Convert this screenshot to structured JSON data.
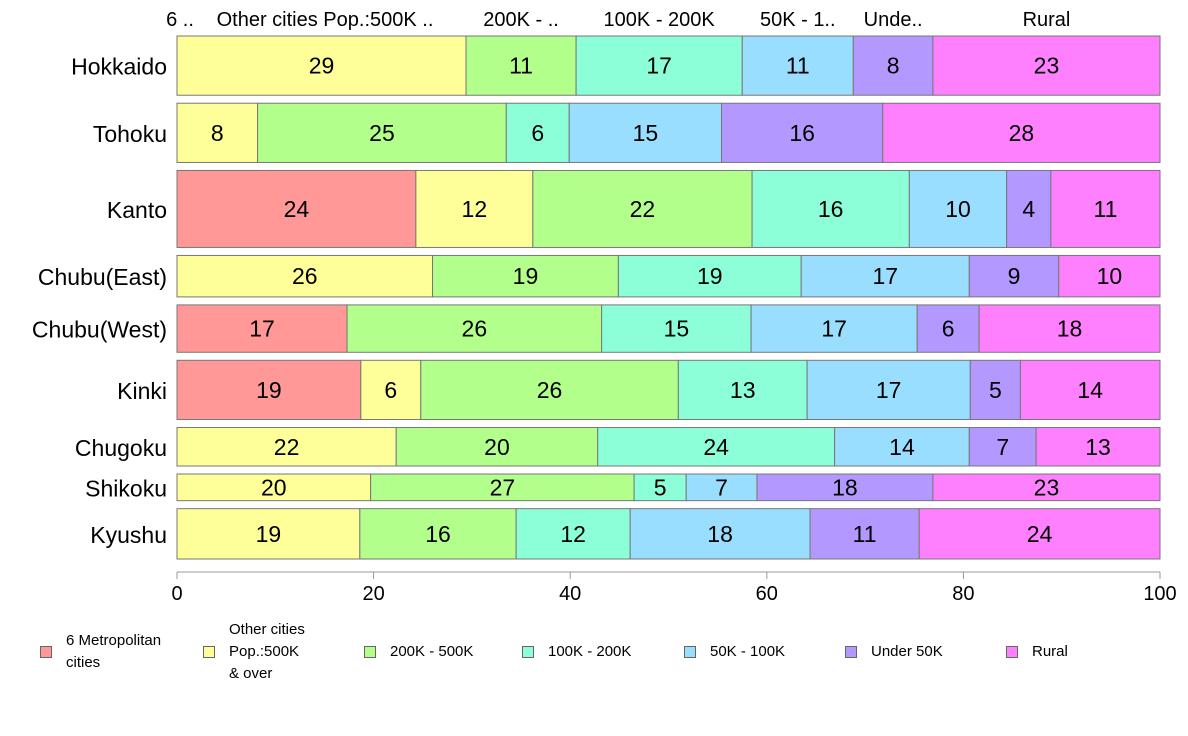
{
  "chart_data": {
    "type": "bar",
    "orientation": "horizontal",
    "stacked": true,
    "categories": [
      "Hokkaido",
      "Tohoku",
      "Kanto",
      "Chubu(East)",
      "Chubu(West)",
      "Kinki",
      "Chugoku",
      "Shikoku",
      "Kyushu"
    ],
    "series": [
      {
        "name": "6 Metropolitan\ncities",
        "header": "6 ..",
        "color": "#ff9896",
        "values": [
          0,
          0,
          24.3,
          0,
          17.3,
          18.7,
          0,
          0,
          0
        ]
      },
      {
        "name": "Other cities\nPop.:500K\n& over",
        "header": "Other cities Pop.:500K ..",
        "color": "#ffff99",
        "values": [
          29.4,
          8.2,
          11.9,
          26,
          0,
          6.1,
          22.3,
          19.7,
          18.6
        ]
      },
      {
        "name": "200K - 500K",
        "header": "200K - ..",
        "color": "#b3ff8c",
        "values": [
          11.2,
          25.3,
          22.3,
          18.9,
          25.9,
          26.2,
          20.5,
          26.8,
          15.9
        ]
      },
      {
        "name": "100K - 200K",
        "header": "100K - 200K",
        "color": "#8cffd9",
        "values": [
          16.9,
          6.4,
          16,
          18.6,
          15.2,
          13.1,
          24.1,
          5.3,
          11.6
        ]
      },
      {
        "name": "50K - 100K",
        "header": "50K - 1..",
        "color": "#99ddff",
        "values": [
          11.3,
          15.5,
          9.9,
          17.1,
          16.9,
          16.6,
          13.7,
          7.2,
          18.3
        ]
      },
      {
        "name": "Under 50K",
        "header": "Unde..",
        "color": "#b399ff",
        "values": [
          8.1,
          16.4,
          4.5,
          9.1,
          6.3,
          5.1,
          6.8,
          17.9,
          11.1
        ]
      },
      {
        "name": "Rural",
        "header": "Rural",
        "color": "#ff80ff",
        "values": [
          23.1,
          28.2,
          11.1,
          10.3,
          18.4,
          14.2,
          12.6,
          23.1,
          24.5
        ]
      }
    ],
    "value_labels": [
      [
        null,
        "29",
        "11",
        "17",
        "11",
        "8",
        "23"
      ],
      [
        null,
        "8",
        "25",
        "6",
        "15",
        "16",
        "28"
      ],
      [
        "24",
        "12",
        "22",
        "16",
        "10",
        "4",
        "11"
      ],
      [
        null,
        "26",
        "19",
        "19",
        "17",
        "9",
        "10"
      ],
      [
        "17",
        null,
        "26",
        "15",
        "17",
        "6",
        "18"
      ],
      [
        "19",
        "6",
        "26",
        "13",
        "17",
        "5",
        "14"
      ],
      [
        null,
        "22",
        "20",
        "24",
        "14",
        "7",
        "13"
      ],
      [
        null,
        "20",
        "27",
        "5",
        "7",
        "18",
        "23"
      ],
      [
        null,
        "19",
        "16",
        "12",
        "18",
        "11",
        "24"
      ]
    ],
    "bar_weights": [
      1,
      1,
      1.3,
      0.7,
      0.8,
      1,
      0.65,
      0.45,
      0.85
    ],
    "xlim": [
      0,
      100
    ],
    "xticks": [
      0,
      20,
      40,
      60,
      80,
      100
    ],
    "xtick_labels": [
      "0",
      "20",
      "40",
      "60",
      "80",
      "100"
    ],
    "grid": false,
    "legend_position": "bottom"
  }
}
